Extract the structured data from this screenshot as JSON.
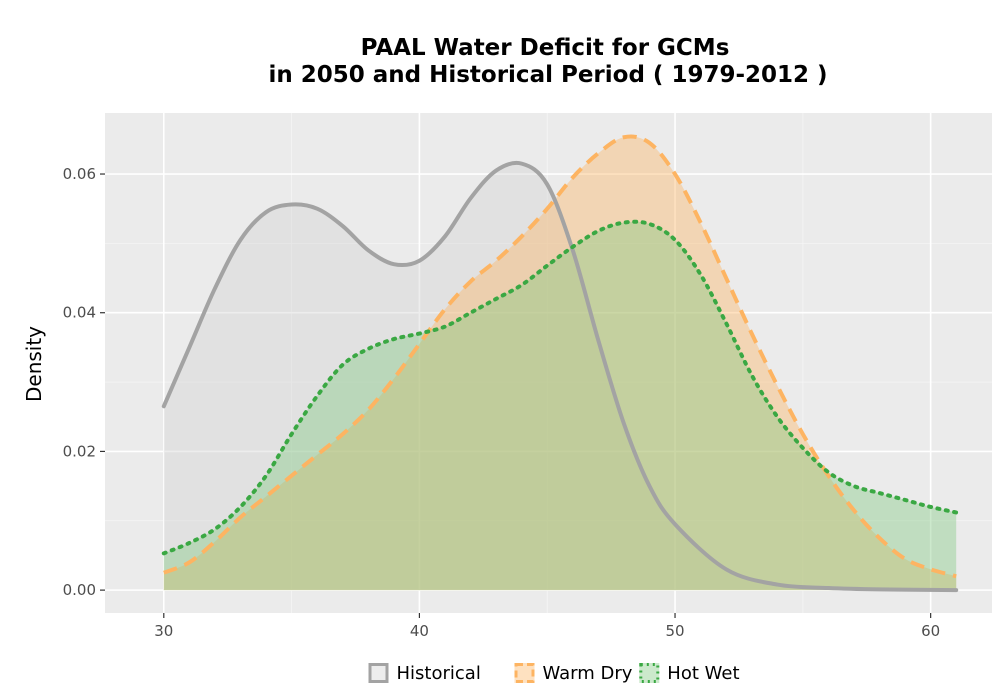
{
  "chart_data": {
    "type": "area",
    "title_line1": "PAAL  Water Deficit for GCMs",
    "title_line2": "in 2050 and Historical Period ( 1979-2012 )",
    "xlabel": "",
    "ylabel": "Density",
    "xlim": [
      27.7,
      62.4
    ],
    "ylim": [
      -0.0033,
      0.0688
    ],
    "x_ticks": [
      30,
      40,
      50,
      60
    ],
    "y_ticks": [
      0.0,
      0.02,
      0.04,
      0.06
    ],
    "y_tick_labels": [
      "0.00",
      "0.02",
      "0.04",
      "0.06"
    ],
    "grid": true,
    "legend_position": "bottom",
    "series": [
      {
        "name": "Historical",
        "line_color": "#a3a3a3",
        "fill_color": "#d3d3d3",
        "line_style": "solid",
        "x": [
          30,
          31,
          32,
          33,
          34,
          35,
          36,
          37,
          38,
          39,
          40,
          41,
          42,
          43,
          44,
          45,
          46,
          47,
          48,
          49,
          50,
          52,
          54,
          56,
          58,
          61
        ],
        "y": [
          0.0265,
          0.035,
          0.0435,
          0.0505,
          0.0545,
          0.0556,
          0.055,
          0.0525,
          0.049,
          0.047,
          0.0475,
          0.051,
          0.0565,
          0.0605,
          0.0615,
          0.0585,
          0.049,
          0.036,
          0.024,
          0.015,
          0.0095,
          0.003,
          0.0008,
          0.0003,
          0.0001,
          0.0
        ]
      },
      {
        "name": "Warm Dry",
        "line_color": "#fdb462",
        "fill_color": "#fdb462",
        "line_style": "dashed",
        "x": [
          30,
          31,
          32,
          33,
          34,
          35,
          36,
          37,
          38,
          39,
          40,
          41,
          42,
          43,
          44,
          45,
          46,
          47,
          48,
          49,
          50,
          51,
          52,
          53,
          54,
          55,
          56,
          57,
          58,
          59,
          60,
          61
        ],
        "y": [
          0.0025,
          0.004,
          0.007,
          0.0105,
          0.0135,
          0.0165,
          0.0195,
          0.0225,
          0.026,
          0.0305,
          0.0355,
          0.0405,
          0.0445,
          0.0475,
          0.051,
          0.055,
          0.0595,
          0.063,
          0.0653,
          0.0645,
          0.06,
          0.053,
          0.045,
          0.037,
          0.0295,
          0.0225,
          0.0165,
          0.0115,
          0.0075,
          0.0045,
          0.003,
          0.002
        ]
      },
      {
        "name": "Hot Wet",
        "line_color": "#3aa843",
        "fill_color": "#7fc97f",
        "line_style": "dotted",
        "x": [
          30,
          31,
          32,
          33,
          34,
          35,
          36,
          37,
          38,
          39,
          40,
          41,
          42,
          43,
          44,
          45,
          46,
          47,
          48,
          49,
          50,
          51,
          52,
          53,
          54,
          55,
          56,
          57,
          58,
          59,
          60,
          61
        ],
        "y": [
          0.0053,
          0.0068,
          0.0088,
          0.012,
          0.0165,
          0.0225,
          0.028,
          0.0325,
          0.0348,
          0.0362,
          0.037,
          0.038,
          0.04,
          0.042,
          0.044,
          0.0468,
          0.0495,
          0.0518,
          0.053,
          0.0528,
          0.0505,
          0.0455,
          0.0385,
          0.031,
          0.025,
          0.0205,
          0.017,
          0.015,
          0.014,
          0.013,
          0.012,
          0.0112
        ]
      }
    ]
  }
}
